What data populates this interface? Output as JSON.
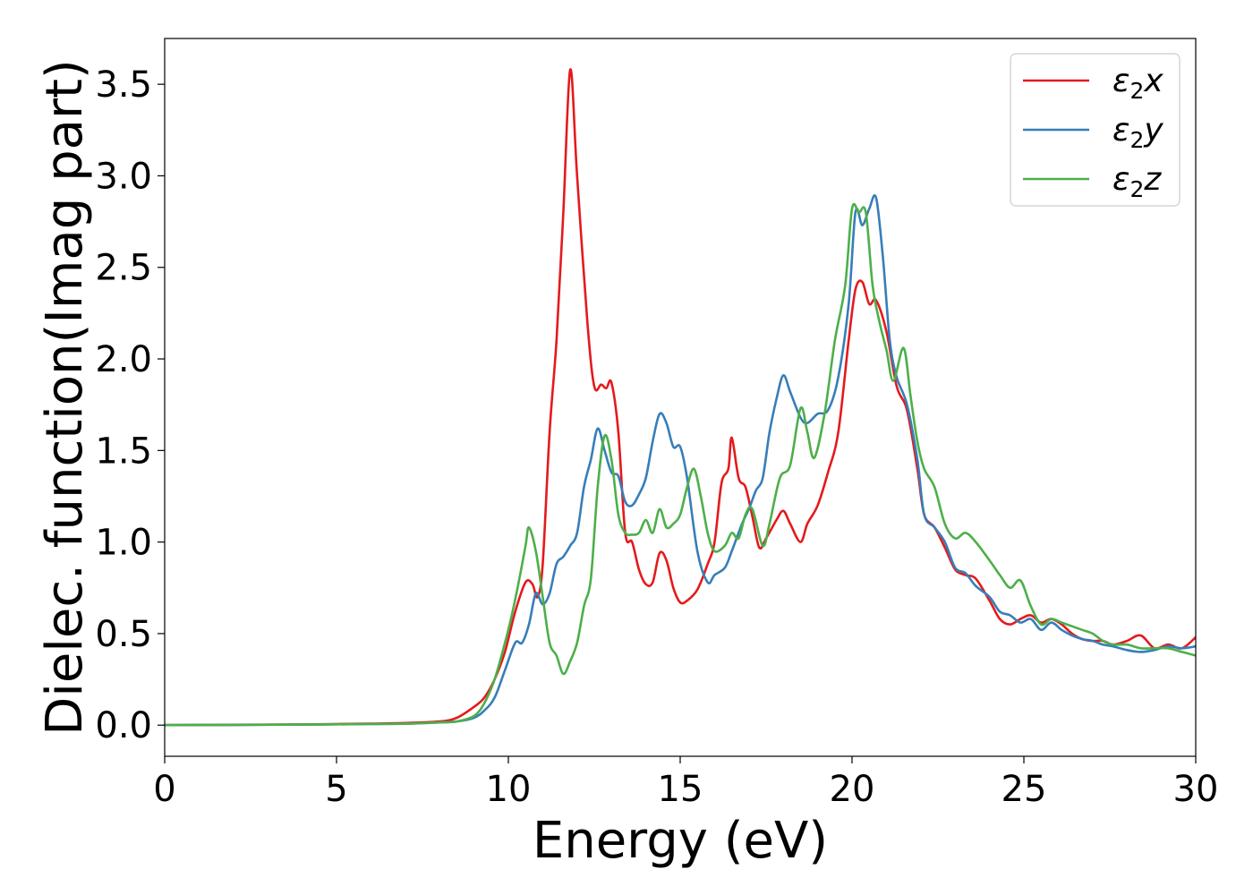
{
  "chart_data": {
    "type": "line",
    "title": "",
    "xlabel": "Energy (eV)",
    "ylabel": "Dielec. function(Imag part)",
    "xlim": [
      0,
      30
    ],
    "ylim": [
      -0.17,
      3.75
    ],
    "xticks": [
      0,
      5,
      10,
      15,
      20,
      25,
      30
    ],
    "xtick_labels": [
      "0",
      "5",
      "10",
      "15",
      "20",
      "25",
      "30"
    ],
    "yticks": [
      0.0,
      0.5,
      1.0,
      1.5,
      2.0,
      2.5,
      3.0,
      3.5
    ],
    "ytick_labels": [
      "0.0",
      "0.5",
      "1.0",
      "1.5",
      "2.0",
      "2.5",
      "3.0",
      "3.5"
    ],
    "grid": false,
    "legend_position": "top-right",
    "series": [
      {
        "name": "ε2x",
        "legend_base": "ε",
        "legend_sub": "2",
        "legend_suffix": "x",
        "color": "#e41a1c",
        "points": [
          [
            0,
            0.0
          ],
          [
            2,
            0.002
          ],
          [
            4,
            0.004
          ],
          [
            6,
            0.008
          ],
          [
            7,
            0.012
          ],
          [
            8,
            0.02
          ],
          [
            8.5,
            0.04
          ],
          [
            9,
            0.1
          ],
          [
            9.3,
            0.15
          ],
          [
            9.6,
            0.25
          ],
          [
            9.9,
            0.4
          ],
          [
            10.2,
            0.62
          ],
          [
            10.5,
            0.78
          ],
          [
            10.7,
            0.77
          ],
          [
            10.85,
            0.7
          ],
          [
            11.0,
            0.88
          ],
          [
            11.2,
            1.6
          ],
          [
            11.4,
            2.1
          ],
          [
            11.6,
            2.8
          ],
          [
            11.8,
            3.58
          ],
          [
            12.0,
            3.0
          ],
          [
            12.3,
            2.2
          ],
          [
            12.5,
            1.85
          ],
          [
            12.7,
            1.86
          ],
          [
            12.85,
            1.84
          ],
          [
            13.0,
            1.87
          ],
          [
            13.2,
            1.6
          ],
          [
            13.4,
            1.05
          ],
          [
            13.6,
            1.0
          ],
          [
            13.8,
            0.85
          ],
          [
            14.0,
            0.77
          ],
          [
            14.2,
            0.78
          ],
          [
            14.4,
            0.94
          ],
          [
            14.6,
            0.9
          ],
          [
            14.8,
            0.75
          ],
          [
            15.0,
            0.67
          ],
          [
            15.2,
            0.68
          ],
          [
            15.5,
            0.74
          ],
          [
            15.8,
            0.88
          ],
          [
            16.0,
            1.0
          ],
          [
            16.2,
            1.32
          ],
          [
            16.4,
            1.4
          ],
          [
            16.5,
            1.57
          ],
          [
            16.7,
            1.35
          ],
          [
            16.9,
            1.3
          ],
          [
            17.1,
            1.14
          ],
          [
            17.3,
            0.97
          ],
          [
            17.5,
            1.02
          ],
          [
            17.8,
            1.12
          ],
          [
            18.0,
            1.17
          ],
          [
            18.2,
            1.1
          ],
          [
            18.5,
            1.0
          ],
          [
            18.7,
            1.1
          ],
          [
            19.0,
            1.2
          ],
          [
            19.3,
            1.38
          ],
          [
            19.6,
            1.6
          ],
          [
            19.9,
            2.1
          ],
          [
            20.1,
            2.38
          ],
          [
            20.3,
            2.42
          ],
          [
            20.5,
            2.3
          ],
          [
            20.7,
            2.32
          ],
          [
            21.0,
            2.15
          ],
          [
            21.3,
            1.85
          ],
          [
            21.6,
            1.72
          ],
          [
            21.9,
            1.4
          ],
          [
            22.1,
            1.15
          ],
          [
            22.4,
            1.08
          ],
          [
            22.7,
            0.97
          ],
          [
            23.0,
            0.85
          ],
          [
            23.3,
            0.82
          ],
          [
            23.6,
            0.8
          ],
          [
            24.0,
            0.68
          ],
          [
            24.3,
            0.58
          ],
          [
            24.6,
            0.55
          ],
          [
            24.9,
            0.58
          ],
          [
            25.2,
            0.6
          ],
          [
            25.5,
            0.56
          ],
          [
            25.8,
            0.58
          ],
          [
            26.1,
            0.55
          ],
          [
            26.4,
            0.5
          ],
          [
            26.7,
            0.47
          ],
          [
            27.0,
            0.46
          ],
          [
            27.3,
            0.46
          ],
          [
            27.6,
            0.44
          ],
          [
            28.0,
            0.46
          ],
          [
            28.4,
            0.49
          ],
          [
            28.8,
            0.42
          ],
          [
            29.2,
            0.44
          ],
          [
            29.6,
            0.42
          ],
          [
            30.0,
            0.48
          ]
        ]
      },
      {
        "name": "ε2y",
        "legend_base": "ε",
        "legend_sub": "2",
        "legend_suffix": "y",
        "color": "#377eb8",
        "points": [
          [
            0,
            0.0
          ],
          [
            2,
            0.001
          ],
          [
            4,
            0.003
          ],
          [
            6,
            0.006
          ],
          [
            7,
            0.008
          ],
          [
            8,
            0.015
          ],
          [
            8.5,
            0.02
          ],
          [
            9,
            0.04
          ],
          [
            9.3,
            0.08
          ],
          [
            9.6,
            0.15
          ],
          [
            9.9,
            0.3
          ],
          [
            10.2,
            0.45
          ],
          [
            10.4,
            0.45
          ],
          [
            10.6,
            0.55
          ],
          [
            10.8,
            0.72
          ],
          [
            11.0,
            0.66
          ],
          [
            11.2,
            0.72
          ],
          [
            11.4,
            0.88
          ],
          [
            11.6,
            0.92
          ],
          [
            11.8,
            0.98
          ],
          [
            12.0,
            1.05
          ],
          [
            12.2,
            1.3
          ],
          [
            12.4,
            1.45
          ],
          [
            12.6,
            1.62
          ],
          [
            12.8,
            1.5
          ],
          [
            13.0,
            1.38
          ],
          [
            13.2,
            1.36
          ],
          [
            13.4,
            1.22
          ],
          [
            13.6,
            1.2
          ],
          [
            13.8,
            1.26
          ],
          [
            14.0,
            1.35
          ],
          [
            14.2,
            1.55
          ],
          [
            14.4,
            1.7
          ],
          [
            14.6,
            1.65
          ],
          [
            14.8,
            1.52
          ],
          [
            15.0,
            1.52
          ],
          [
            15.2,
            1.35
          ],
          [
            15.5,
            0.95
          ],
          [
            15.8,
            0.78
          ],
          [
            16.0,
            0.82
          ],
          [
            16.3,
            0.86
          ],
          [
            16.5,
            0.95
          ],
          [
            16.8,
            1.1
          ],
          [
            17.0,
            1.18
          ],
          [
            17.2,
            1.28
          ],
          [
            17.4,
            1.35
          ],
          [
            17.6,
            1.6
          ],
          [
            17.8,
            1.78
          ],
          [
            18.0,
            1.91
          ],
          [
            18.2,
            1.82
          ],
          [
            18.5,
            1.68
          ],
          [
            18.7,
            1.65
          ],
          [
            19.0,
            1.7
          ],
          [
            19.3,
            1.72
          ],
          [
            19.6,
            1.9
          ],
          [
            19.9,
            2.3
          ],
          [
            20.1,
            2.8
          ],
          [
            20.3,
            2.73
          ],
          [
            20.5,
            2.82
          ],
          [
            20.7,
            2.88
          ],
          [
            20.9,
            2.55
          ],
          [
            21.1,
            2.1
          ],
          [
            21.3,
            1.9
          ],
          [
            21.6,
            1.75
          ],
          [
            21.9,
            1.45
          ],
          [
            22.1,
            1.15
          ],
          [
            22.4,
            1.08
          ],
          [
            22.7,
            1.0
          ],
          [
            23.0,
            0.86
          ],
          [
            23.3,
            0.83
          ],
          [
            23.6,
            0.76
          ],
          [
            24.0,
            0.7
          ],
          [
            24.3,
            0.62
          ],
          [
            24.6,
            0.6
          ],
          [
            24.9,
            0.56
          ],
          [
            25.2,
            0.58
          ],
          [
            25.5,
            0.52
          ],
          [
            25.8,
            0.56
          ],
          [
            26.1,
            0.52
          ],
          [
            26.4,
            0.49
          ],
          [
            26.7,
            0.47
          ],
          [
            27.0,
            0.46
          ],
          [
            27.3,
            0.44
          ],
          [
            27.6,
            0.43
          ],
          [
            28.0,
            0.41
          ],
          [
            28.4,
            0.4
          ],
          [
            28.8,
            0.41
          ],
          [
            29.2,
            0.43
          ],
          [
            29.6,
            0.42
          ],
          [
            30.0,
            0.43
          ]
        ]
      },
      {
        "name": "ε2z",
        "legend_base": "ε",
        "legend_sub": "2",
        "legend_suffix": "z",
        "color": "#4daf4a",
        "points": [
          [
            0,
            0.0
          ],
          [
            2,
            0.001
          ],
          [
            4,
            0.003
          ],
          [
            6,
            0.006
          ],
          [
            7,
            0.008
          ],
          [
            8,
            0.015
          ],
          [
            8.5,
            0.02
          ],
          [
            9,
            0.05
          ],
          [
            9.3,
            0.12
          ],
          [
            9.6,
            0.25
          ],
          [
            9.9,
            0.45
          ],
          [
            10.1,
            0.6
          ],
          [
            10.3,
            0.78
          ],
          [
            10.5,
            0.98
          ],
          [
            10.6,
            1.08
          ],
          [
            10.8,
            0.95
          ],
          [
            11.0,
            0.7
          ],
          [
            11.2,
            0.45
          ],
          [
            11.4,
            0.38
          ],
          [
            11.6,
            0.28
          ],
          [
            11.8,
            0.35
          ],
          [
            12.0,
            0.45
          ],
          [
            12.2,
            0.65
          ],
          [
            12.4,
            0.8
          ],
          [
            12.6,
            1.3
          ],
          [
            12.8,
            1.58
          ],
          [
            13.0,
            1.45
          ],
          [
            13.2,
            1.15
          ],
          [
            13.4,
            1.05
          ],
          [
            13.6,
            1.04
          ],
          [
            13.8,
            1.05
          ],
          [
            14.0,
            1.12
          ],
          [
            14.2,
            1.05
          ],
          [
            14.4,
            1.18
          ],
          [
            14.6,
            1.08
          ],
          [
            14.8,
            1.1
          ],
          [
            15.0,
            1.15
          ],
          [
            15.2,
            1.3
          ],
          [
            15.4,
            1.4
          ],
          [
            15.6,
            1.25
          ],
          [
            15.8,
            1.05
          ],
          [
            16.0,
            0.95
          ],
          [
            16.3,
            0.98
          ],
          [
            16.5,
            1.05
          ],
          [
            16.7,
            1.02
          ],
          [
            16.9,
            1.15
          ],
          [
            17.1,
            1.18
          ],
          [
            17.4,
            0.98
          ],
          [
            17.6,
            1.1
          ],
          [
            17.9,
            1.35
          ],
          [
            18.2,
            1.42
          ],
          [
            18.5,
            1.73
          ],
          [
            18.7,
            1.6
          ],
          [
            18.9,
            1.46
          ],
          [
            19.2,
            1.7
          ],
          [
            19.5,
            2.1
          ],
          [
            19.8,
            2.4
          ],
          [
            20.0,
            2.82
          ],
          [
            20.2,
            2.8
          ],
          [
            20.4,
            2.8
          ],
          [
            20.6,
            2.4
          ],
          [
            20.8,
            2.2
          ],
          [
            21.0,
            2.05
          ],
          [
            21.2,
            1.88
          ],
          [
            21.5,
            2.06
          ],
          [
            21.7,
            1.8
          ],
          [
            21.9,
            1.55
          ],
          [
            22.1,
            1.4
          ],
          [
            22.4,
            1.3
          ],
          [
            22.7,
            1.1
          ],
          [
            23.0,
            1.02
          ],
          [
            23.3,
            1.05
          ],
          [
            23.6,
            1.0
          ],
          [
            24.0,
            0.9
          ],
          [
            24.3,
            0.82
          ],
          [
            24.6,
            0.75
          ],
          [
            24.9,
            0.79
          ],
          [
            25.2,
            0.65
          ],
          [
            25.5,
            0.55
          ],
          [
            25.8,
            0.58
          ],
          [
            26.1,
            0.56
          ],
          [
            26.4,
            0.54
          ],
          [
            26.7,
            0.52
          ],
          [
            27.0,
            0.5
          ],
          [
            27.3,
            0.46
          ],
          [
            27.6,
            0.44
          ],
          [
            28.0,
            0.44
          ],
          [
            28.4,
            0.42
          ],
          [
            28.8,
            0.42
          ],
          [
            29.2,
            0.42
          ],
          [
            29.6,
            0.4
          ],
          [
            30.0,
            0.38
          ]
        ]
      }
    ]
  }
}
